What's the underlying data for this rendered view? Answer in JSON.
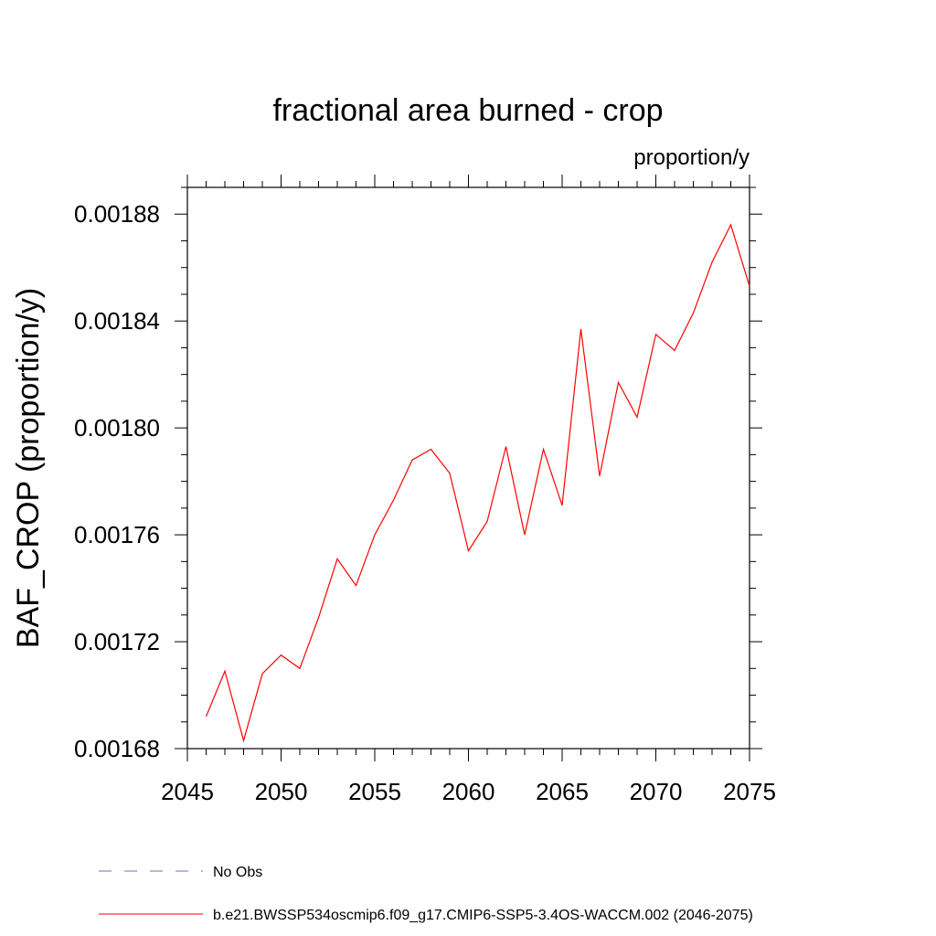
{
  "chart_data": {
    "type": "line",
    "title": "fractional area burned - crop",
    "units_label": "proportion/y",
    "ylabel": "BAF_CROP  (proportion/y)",
    "xlabel": "",
    "xlim": [
      2045,
      2075
    ],
    "ylim": [
      0.00168,
      0.00189
    ],
    "x_ticks": [
      "2045",
      "2050",
      "2055",
      "2060",
      "2065",
      "2070",
      "2075"
    ],
    "y_ticks": [
      "0.00168",
      "0.00172",
      "0.00176",
      "0.00180",
      "0.00184",
      "0.00188"
    ],
    "x": [
      2046,
      2047,
      2048,
      2049,
      2050,
      2051,
      2052,
      2053,
      2054,
      2055,
      2056,
      2057,
      2058,
      2059,
      2060,
      2061,
      2062,
      2063,
      2064,
      2065,
      2066,
      2067,
      2068,
      2069,
      2070,
      2071,
      2072,
      2073,
      2074,
      2075
    ],
    "series": [
      {
        "name": "b.e21.BWSSP534oscmip6.f09_g17.CMIP6-SSP5-3.4OS-WACCM.002 (2046-2075)",
        "color": "#ff0000",
        "values": [
          0.001692,
          0.001709,
          0.001683,
          0.001708,
          0.001715,
          0.00171,
          0.001729,
          0.001751,
          0.001741,
          0.00176,
          0.001773,
          0.001788,
          0.001792,
          0.001783,
          0.001754,
          0.001765,
          0.001793,
          0.00176,
          0.001792,
          0.001771,
          0.001837,
          0.001782,
          0.001817,
          0.001804,
          0.001835,
          0.001829,
          0.001843,
          0.001862,
          0.001876,
          0.001853
        ]
      }
    ],
    "legend": [
      {
        "label": "No Obs",
        "style": "dashed",
        "color": "#7b6fb0"
      },
      {
        "label": "b.e21.BWSSP534oscmip6.f09_g17.CMIP6-SSP5-3.4OS-WACCM.002 (2046-2075)",
        "style": "solid",
        "color": "#ff0000"
      }
    ],
    "legend_position": "bottom",
    "grid": false
  }
}
